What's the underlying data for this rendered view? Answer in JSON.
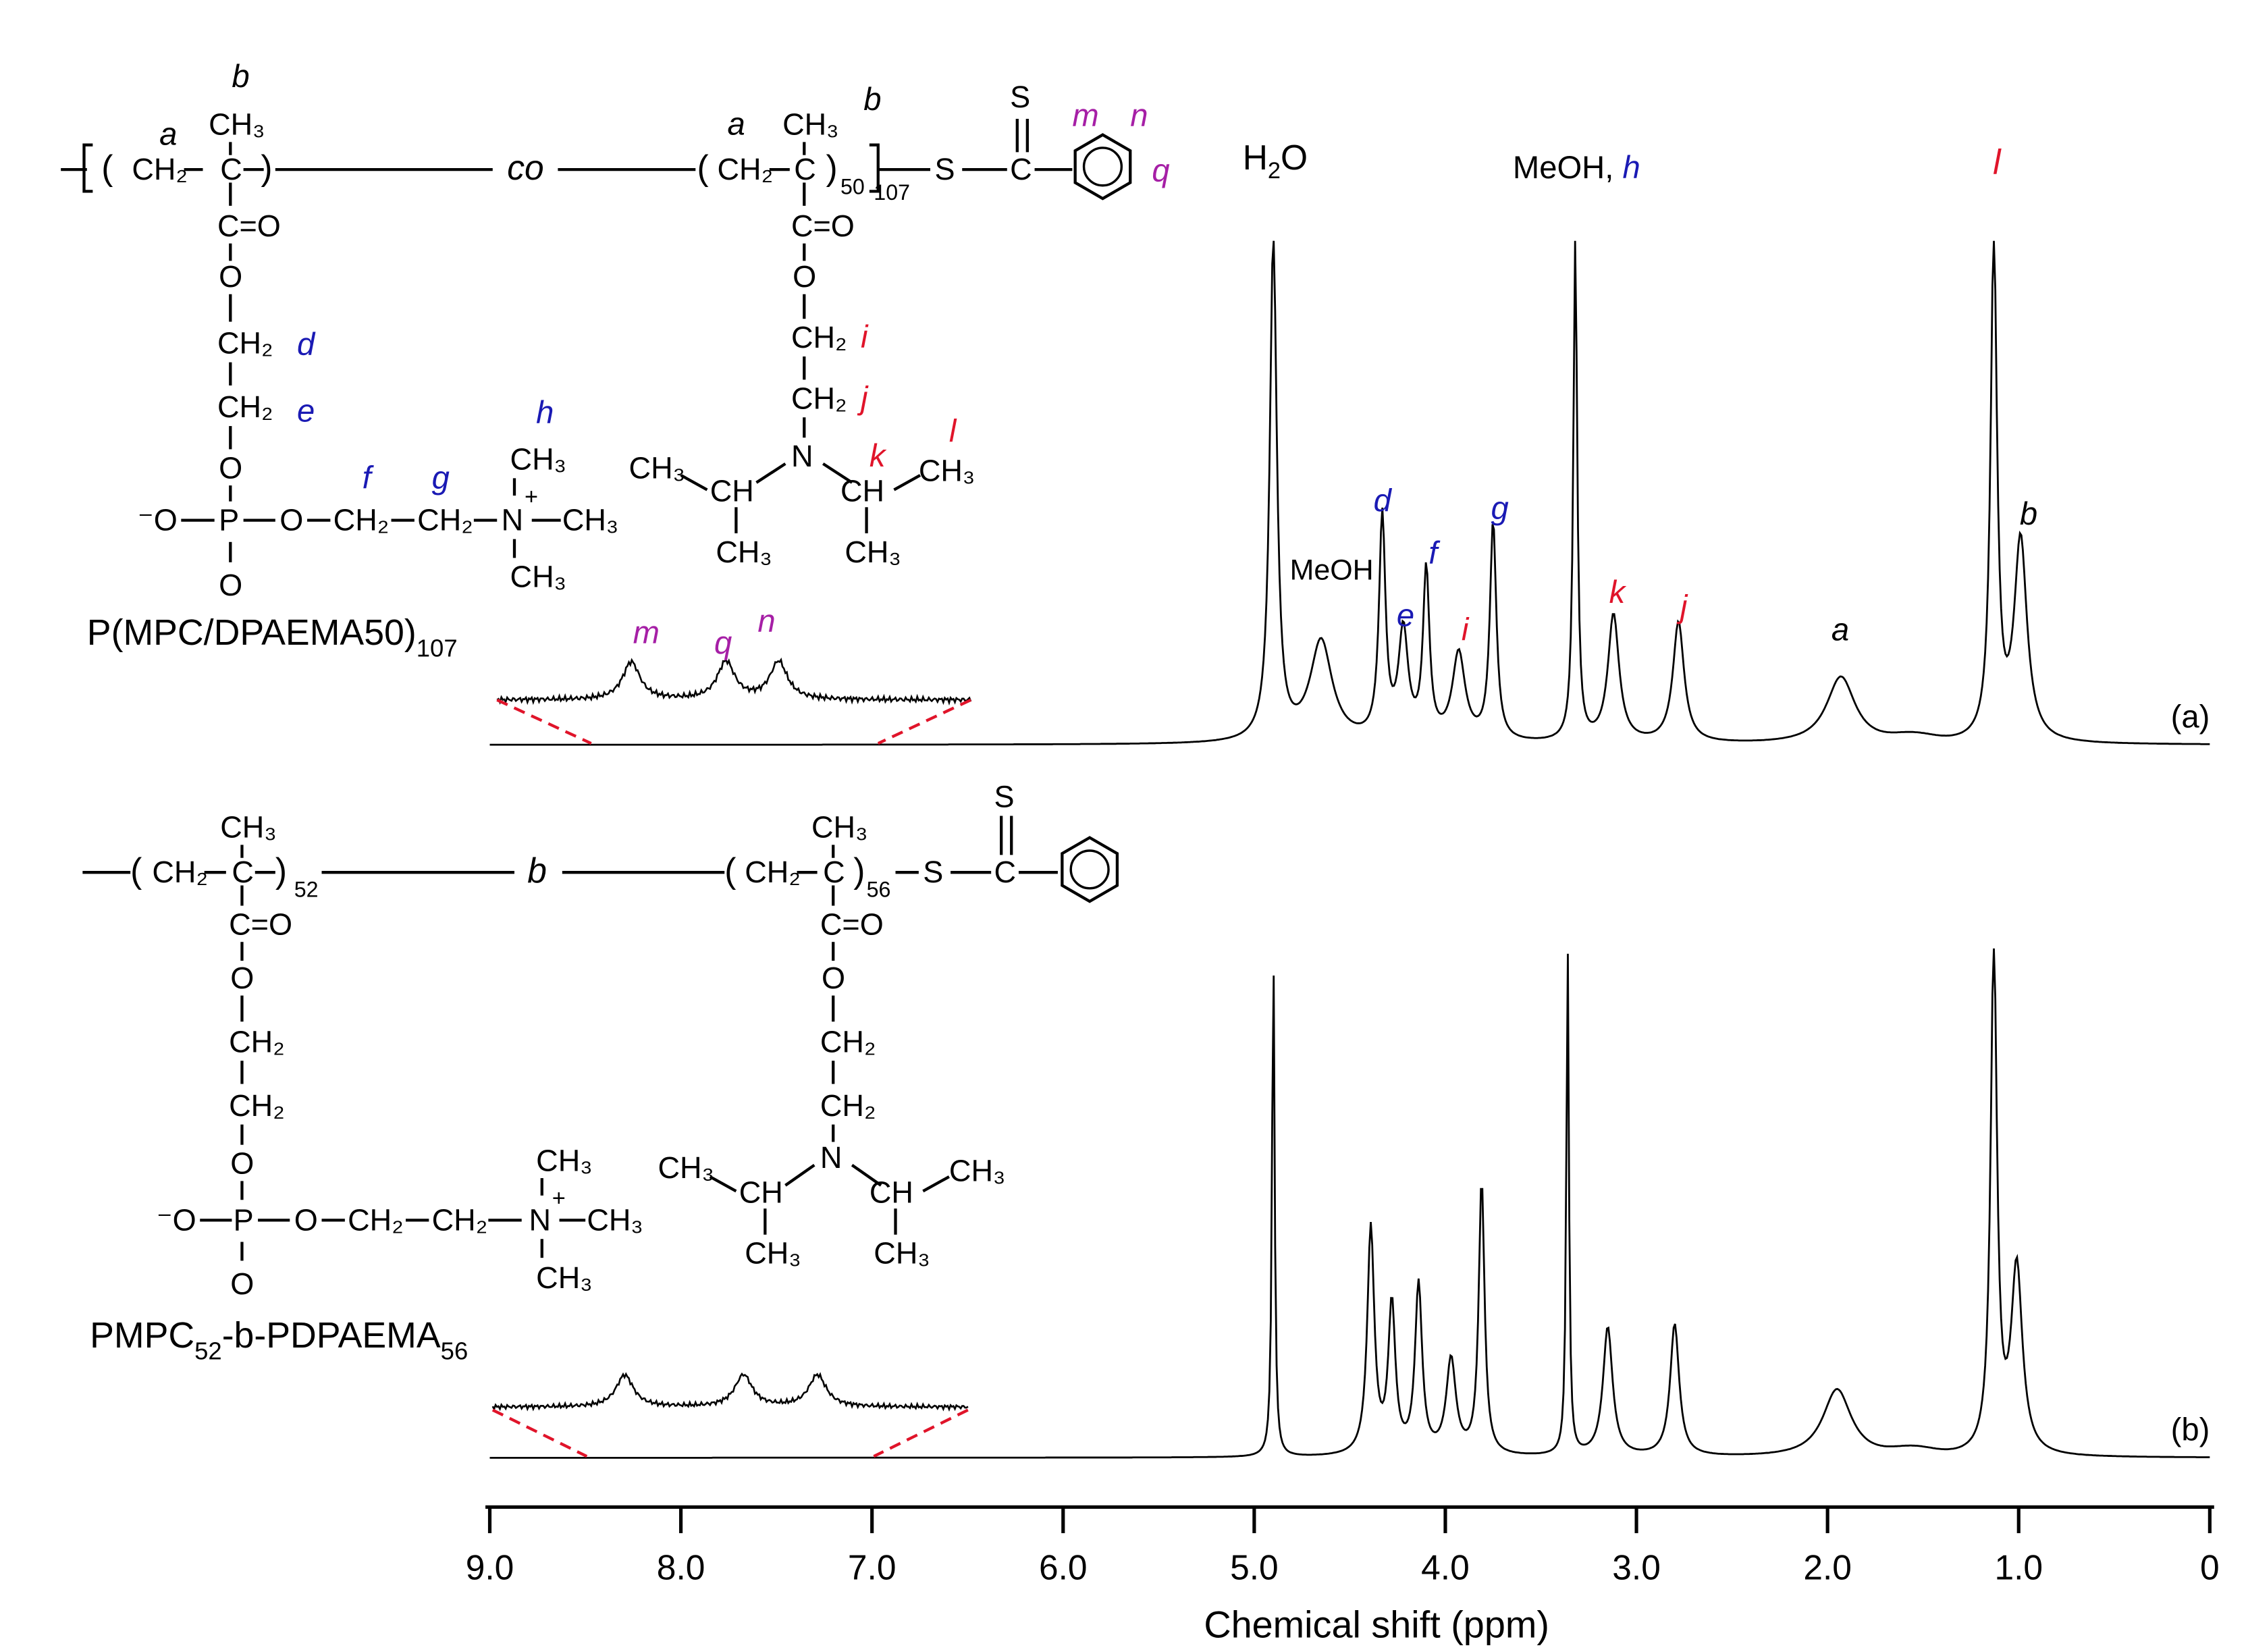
{
  "chart_data": {
    "type": "line",
    "xlabel": "Chemical shift (ppm)",
    "xlim": [
      9.0,
      0
    ],
    "reversed_x": true,
    "x_ticks": [
      "9.0",
      "8.0",
      "7.0",
      "6.0",
      "5.0",
      "4.0",
      "3.0",
      "2.0",
      "1.0",
      "0"
    ],
    "panels": [
      {
        "panel_label": "(a)",
        "polymer": "P(MPC/DPAEMA50)",
        "polymer_subscript": "107",
        "peaks": [
          {
            "label": "H2O",
            "shift": 4.9,
            "intensity": 1.5,
            "clipped": true
          },
          {
            "label": "MeOH",
            "shift": 4.65,
            "intensity": 0.3
          },
          {
            "label": "d",
            "shift": 4.33,
            "intensity": 0.66
          },
          {
            "label": "e",
            "shift": 4.22,
            "intensity": 0.32
          },
          {
            "label": "f",
            "shift": 4.1,
            "intensity": 0.5
          },
          {
            "label": "i",
            "shift": 3.93,
            "intensity": 0.26
          },
          {
            "label": "g",
            "shift": 3.75,
            "intensity": 0.65
          },
          {
            "label": "MeOH, h",
            "shift": 3.32,
            "intensity": 1.5,
            "clipped": true
          },
          {
            "label": "k",
            "shift": 3.12,
            "intensity": 0.38
          },
          {
            "label": "j",
            "shift": 2.78,
            "intensity": 0.36
          },
          {
            "label": "a",
            "shift": 1.93,
            "intensity": 0.2
          },
          {
            "label": "l",
            "shift": 1.13,
            "intensity": 1.5,
            "clipped": true
          },
          {
            "label": "b",
            "shift": 0.99,
            "intensity": 0.6
          }
        ],
        "inset_range_ppm": [
          8.5,
          7.0
        ],
        "inset_peaks": [
          {
            "label": "m",
            "shift": 8.14
          },
          {
            "label": "q",
            "shift": 7.78
          },
          {
            "label": "n",
            "shift": 7.58
          }
        ]
      },
      {
        "panel_label": "(b)",
        "polymer": "PMPC",
        "polymer_subscript": "52",
        "polymer_mid": "-b-",
        "polymer_tail": "PDPAEMA",
        "polymer_tail_subscript": "56",
        "peaks": [
          {
            "shift": 4.9,
            "intensity": 1.5,
            "clipped": true
          },
          {
            "shift": 4.39,
            "intensity": 0.67
          },
          {
            "shift": 4.28,
            "intensity": 0.44
          },
          {
            "shift": 4.14,
            "intensity": 0.5
          },
          {
            "shift": 3.97,
            "intensity": 0.28
          },
          {
            "shift": 3.81,
            "intensity": 0.81
          },
          {
            "shift": 3.36,
            "intensity": 1.5,
            "clipped": true
          },
          {
            "shift": 3.15,
            "intensity": 0.38
          },
          {
            "shift": 2.8,
            "intensity": 0.39
          },
          {
            "shift": 1.95,
            "intensity": 0.2
          },
          {
            "shift": 1.13,
            "intensity": 1.5,
            "clipped": true
          },
          {
            "shift": 1.01,
            "intensity": 0.55
          }
        ],
        "inset_range_ppm": [
          8.5,
          7.0
        ],
        "inset_peaks": [
          {
            "shift": 8.15
          },
          {
            "shift": 7.7
          },
          {
            "shift": 7.42
          }
        ]
      }
    ]
  },
  "structure_a": {
    "ch3": "CH₃",
    "ch2": "CH₂",
    "c": "C",
    "co": "C=O",
    "o": "O",
    "p": "P",
    "n": "N",
    "s": "S",
    "ch": "CH",
    "omin": "⁻O",
    "co_word": "co",
    "sub50": "50",
    "sub107": "107",
    "lab_a": "a",
    "lab_b": "b",
    "lab_d": "d",
    "lab_e": "e",
    "lab_f": "f",
    "lab_g": "g",
    "lab_h": "h",
    "lab_i": "i",
    "lab_j": "j",
    "lab_k": "k",
    "lab_l": "l",
    "lab_m": "m",
    "lab_n": "n",
    "lab_q": "q"
  },
  "structure_b": {
    "sub52": "52",
    "sub56": "56",
    "b_word": "b"
  }
}
